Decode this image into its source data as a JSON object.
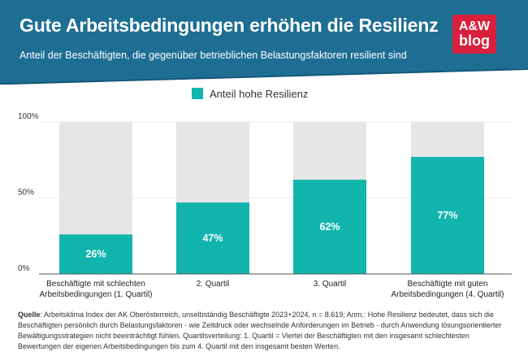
{
  "header": {
    "title": "Gute Arbeitsbedingungen erhöhen die Resilienz",
    "subtitle": "Anteil der Beschäftigten, die gegenüber betrieblichen Belastungsfaktoren resilient sind",
    "bg_color": "#1e6e94"
  },
  "logo": {
    "line1": "A&W",
    "line2": "blog",
    "color": "#d81f3c"
  },
  "legend": {
    "label": "Anteil hohe Resilienz",
    "color": "#12b5ad"
  },
  "chart_data": {
    "type": "bar",
    "title": "Gute Arbeitsbedingungen erhöhen die Resilienz",
    "subtitle": "Anteil der Beschäftigten, die gegenüber betrieblichen Belastungsfaktoren resilient sind",
    "categories": [
      [
        "Beschäftigte mit schlechten",
        "Arbeitsbedingungen (1. Quartil)"
      ],
      [
        "2. Quartil"
      ],
      [
        "3. Quartil"
      ],
      [
        "Beschäftigte mit guten",
        "Arbeitsbedingungen (4. Quartil)"
      ]
    ],
    "series": [
      {
        "name": "Anteil hohe Resilienz",
        "values": [
          26,
          47,
          62,
          77
        ],
        "labels": [
          "26%",
          "47%",
          "62%",
          "77%"
        ],
        "color": "#12b5ad"
      }
    ],
    "background_bar_value": 100,
    "background_bar_color": "#e6e6e6",
    "yticks": [
      0,
      50,
      100
    ],
    "ytick_labels": [
      "0%",
      "50%",
      "100%"
    ],
    "ylim": [
      0,
      100
    ],
    "xlabel": "",
    "ylabel": "",
    "legend_position": "top-center"
  },
  "footnote": {
    "label": "Quelle",
    "text": ": Arbeitsklima Index der AK Oberösterreich, unselbständig Beschäftigte 2023+2024, n = 8.619; Anm.: Hohe Resilienz bedeutet, dass sich die Beschäftigten persönlich durch Belastungsfaktoren - wie Zeitdruck oder wechselnde Anforderungen im Betrieb - durch Anwendung lösungsorientierter Bewältigungsstrategien nicht beeinträchtigt fühlen. Quartilsverteilung: 1. Quartil = Viertel der Beschäftigten mit den insgesamt schlechtesten Bewertungen der eigenen Arbeitsbedingungen bis zum 4. Quartil mit den insgesamt besten Werten."
  }
}
